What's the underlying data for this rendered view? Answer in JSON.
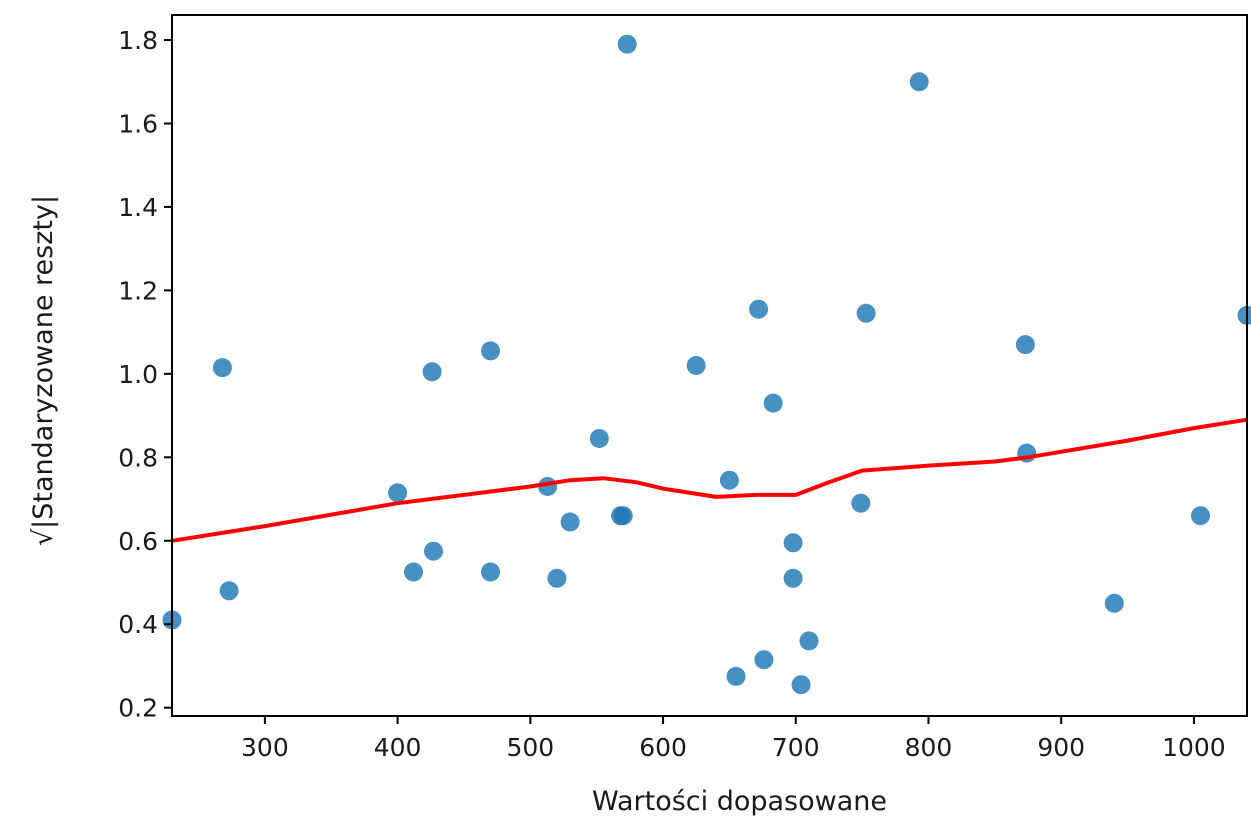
{
  "chart_data": {
    "type": "scatter",
    "title": "",
    "xlabel": "Wartości dopasowane",
    "ylabel": "√|Standaryzowane reszty|",
    "xlim": [
      230,
      1040
    ],
    "ylim": [
      0.18,
      1.86
    ],
    "xticks": [
      300,
      400,
      500,
      600,
      700,
      800,
      900,
      1000
    ],
    "yticks": [
      0.2,
      0.4,
      0.6,
      0.8,
      1.0,
      1.2,
      1.4,
      1.6,
      1.8
    ],
    "xtick_labels": [
      "300",
      "400",
      "500",
      "600",
      "700",
      "800",
      "900",
      "1000"
    ],
    "ytick_labels": [
      "0.2",
      "0.4",
      "0.6",
      "0.8",
      "1.0",
      "1.2",
      "1.4",
      "1.6",
      "1.8"
    ],
    "grid": false,
    "colors": {
      "points": "#1f77b4",
      "line": "#ff0000"
    },
    "series": [
      {
        "type": "scatter",
        "points": [
          [
            230,
            0.41
          ],
          [
            268,
            1.015
          ],
          [
            273,
            0.48
          ],
          [
            400,
            0.715
          ],
          [
            412,
            0.525
          ],
          [
            426,
            1.005
          ],
          [
            427,
            0.575
          ],
          [
            470,
            1.055
          ],
          [
            470,
            0.525
          ],
          [
            513,
            0.73
          ],
          [
            520,
            0.51
          ],
          [
            530,
            0.645
          ],
          [
            552,
            0.845
          ],
          [
            568,
            0.66
          ],
          [
            570,
            0.66
          ],
          [
            573,
            1.79
          ],
          [
            625,
            1.02
          ],
          [
            650,
            0.745
          ],
          [
            655,
            0.275
          ],
          [
            672,
            1.155
          ],
          [
            676,
            0.315
          ],
          [
            683,
            0.93
          ],
          [
            698,
            0.595
          ],
          [
            698,
            0.51
          ],
          [
            704,
            0.255
          ],
          [
            710,
            0.36
          ],
          [
            749,
            0.69
          ],
          [
            753,
            1.145
          ],
          [
            793,
            1.7
          ],
          [
            873,
            1.07
          ],
          [
            874,
            0.81
          ],
          [
            940,
            0.45
          ],
          [
            1005,
            0.66
          ],
          [
            1040,
            1.14
          ]
        ]
      },
      {
        "type": "line",
        "points": [
          [
            230,
            0.6
          ],
          [
            300,
            0.635
          ],
          [
            400,
            0.69
          ],
          [
            450,
            0.71
          ],
          [
            500,
            0.73
          ],
          [
            530,
            0.745
          ],
          [
            555,
            0.75
          ],
          [
            580,
            0.74
          ],
          [
            600,
            0.725
          ],
          [
            640,
            0.705
          ],
          [
            670,
            0.71
          ],
          [
            700,
            0.71
          ],
          [
            725,
            0.74
          ],
          [
            750,
            0.768
          ],
          [
            800,
            0.78
          ],
          [
            850,
            0.79
          ],
          [
            875,
            0.8
          ],
          [
            950,
            0.84
          ],
          [
            1000,
            0.87
          ],
          [
            1040,
            0.89
          ]
        ]
      }
    ]
  }
}
